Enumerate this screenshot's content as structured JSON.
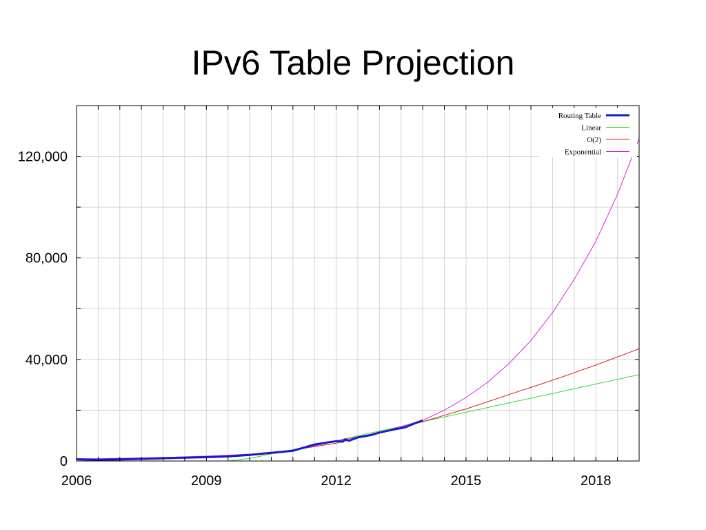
{
  "chart_data": {
    "type": "line",
    "title": "IPv6 Table Projection",
    "xlim": [
      2006,
      2019
    ],
    "ylim": [
      0,
      140000
    ],
    "x_ticks": [
      2006,
      2009,
      2012,
      2015,
      2018
    ],
    "x_tick_labels": [
      "2006",
      "2009",
      "2012",
      "2015",
      "2018"
    ],
    "y_ticks": [
      0,
      40000,
      80000,
      120000
    ],
    "y_tick_labels": [
      "0",
      "40,000",
      "80,000",
      "120,000"
    ],
    "grid": true,
    "legend_position": "top-right",
    "series": [
      {
        "name": "Routing Table",
        "color": "#1a1acc",
        "x": [
          2006.0,
          2006.5,
          2007.0,
          2007.5,
          2008.0,
          2008.5,
          2009.0,
          2009.5,
          2010.0,
          2010.5,
          2011.0,
          2011.2,
          2011.5,
          2011.8,
          2012.0,
          2012.15,
          2012.2,
          2012.3,
          2012.5,
          2012.8,
          2013.0,
          2013.3,
          2013.6,
          2013.8,
          2014.0
        ],
        "y": [
          700,
          500,
          700,
          900,
          1100,
          1300,
          1500,
          1800,
          2400,
          3200,
          4000,
          5000,
          6500,
          7300,
          7800,
          7600,
          8500,
          8000,
          9300,
          10200,
          11200,
          12300,
          13300,
          14700,
          16000
        ]
      },
      {
        "name": "Linear",
        "color": "#33dd33",
        "x": [
          2009.5,
          2010.0,
          2011.0,
          2012.0,
          2013.0,
          2014.0,
          2015.0,
          2016.0,
          2017.0,
          2018.0,
          2019.0
        ],
        "y": [
          0,
          1000,
          4500,
          8000,
          11800,
          15500,
          19200,
          22900,
          26600,
          30300,
          34000
        ]
      },
      {
        "name": "O(2)",
        "color": "#dd2222",
        "x": [
          2006.0,
          2007.0,
          2008.0,
          2009.0,
          2010.0,
          2011.0,
          2012.0,
          2013.0,
          2014.0,
          2015.0,
          2016.0,
          2017.0,
          2018.0,
          2019.0
        ],
        "y": [
          0,
          300,
          800,
          1600,
          2700,
          4300,
          7000,
          11000,
          15500,
          20500,
          26200,
          31800,
          37800,
          44200
        ]
      },
      {
        "name": "Exponential",
        "color": "#dd22dd",
        "x": [
          2006.0,
          2007.0,
          2008.0,
          2009.0,
          2010.0,
          2011.0,
          2012.0,
          2013.0,
          2014.0,
          2014.5,
          2015.0,
          2015.5,
          2016.0,
          2016.5,
          2017.0,
          2017.5,
          2018.0,
          2018.5,
          2019.0
        ],
        "y": [
          800,
          1000,
          1400,
          1900,
          2700,
          4000,
          7800,
          11200,
          16000,
          20000,
          25000,
          31000,
          38500,
          47500,
          58500,
          71500,
          86500,
          105000,
          127000
        ]
      }
    ]
  }
}
